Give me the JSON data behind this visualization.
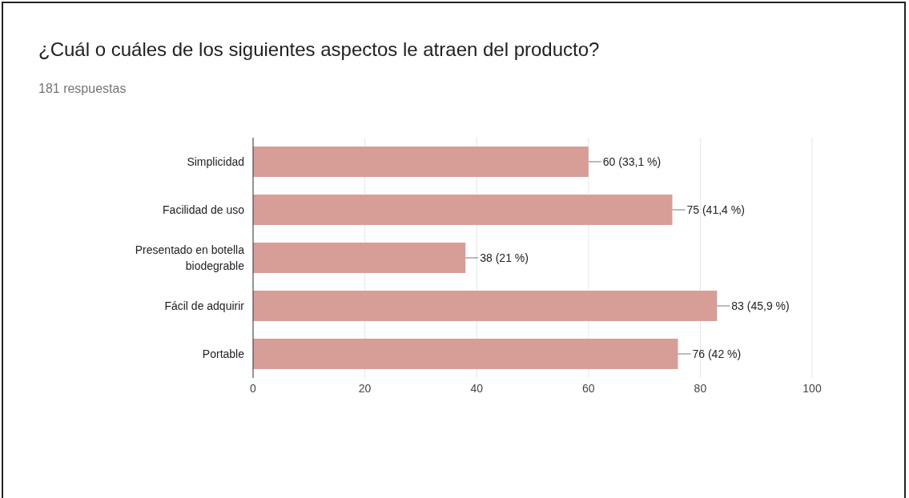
{
  "chart_data": {
    "type": "bar",
    "orientation": "horizontal",
    "title": "¿Cuál o cuáles de los siguientes aspectos le atraen del producto?",
    "subtitle": "181 respuestas",
    "categories": [
      "Simplicidad",
      "Facilidad de uso",
      "Presentado en botella biodegrable",
      "Fácil de adquirir",
      "Portable"
    ],
    "values": [
      60,
      75,
      38,
      83,
      76
    ],
    "value_labels": [
      "60 (33,1 %)",
      "75 (41,4 %)",
      "38 (21 %)",
      "83 (45,9 %)",
      "76 (42 %)"
    ],
    "color": "#d79e98",
    "xlim": [
      0,
      100
    ],
    "xticks": [
      0,
      20,
      40,
      60,
      80,
      100
    ],
    "grid": "x",
    "legend": false
  }
}
